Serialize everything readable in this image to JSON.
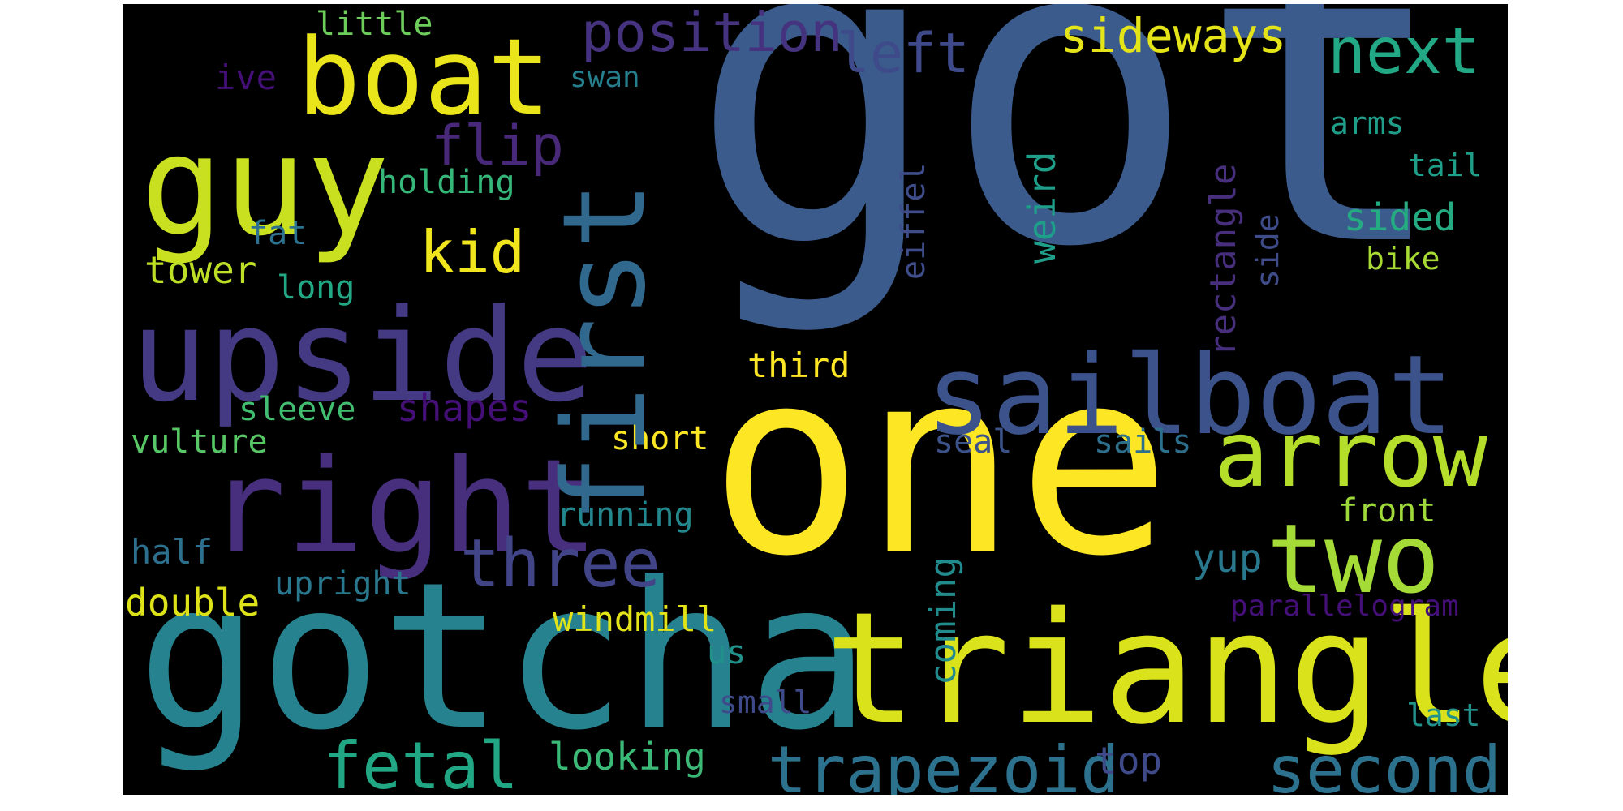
{
  "words": [
    {
      "text": "got",
      "color": "#3b5b8c"
    },
    {
      "text": "one",
      "color": "#fde725"
    },
    {
      "text": "gotcha",
      "color": "#26828e"
    },
    {
      "text": "triangle",
      "color": "#d9e21a"
    },
    {
      "text": "upside",
      "color": "#443983"
    },
    {
      "text": "right",
      "color": "#472f7d"
    },
    {
      "text": "guy",
      "color": "#c8e020"
    },
    {
      "text": "boat",
      "color": "#eae51a"
    },
    {
      "text": "sailboat",
      "color": "#3b528b"
    },
    {
      "text": "first",
      "color": "#31688e"
    },
    {
      "text": "arrow",
      "color": "#b5de2b"
    },
    {
      "text": "two",
      "color": "#a5db36"
    },
    {
      "text": "trapezoid",
      "color": "#2c728e"
    },
    {
      "text": "second",
      "color": "#2c728e"
    },
    {
      "text": "fetal",
      "color": "#22a785"
    },
    {
      "text": "three",
      "color": "#414487"
    },
    {
      "text": "next",
      "color": "#22a884"
    },
    {
      "text": "position",
      "color": "#46337f"
    },
    {
      "text": "left",
      "color": "#3e4a89"
    },
    {
      "text": "sideways",
      "color": "#e5e419"
    },
    {
      "text": "flip",
      "color": "#482878"
    },
    {
      "text": "kid",
      "color": "#f1e51d"
    },
    {
      "text": "looking",
      "color": "#3aba76"
    },
    {
      "text": "windmill",
      "color": "#e2e418"
    },
    {
      "text": "coming",
      "color": "#228c8d"
    },
    {
      "text": "eiffel",
      "color": "#3e4c8a"
    },
    {
      "text": "weird",
      "color": "#1f9e89"
    },
    {
      "text": "rectangle",
      "color": "#472f7d"
    },
    {
      "text": "side",
      "color": "#3e4c8a"
    },
    {
      "text": "sided",
      "color": "#25ab82"
    },
    {
      "text": "shapes",
      "color": "#440f76"
    },
    {
      "text": "little",
      "color": "#6ccd5a"
    },
    {
      "text": "swan",
      "color": "#277f8e"
    },
    {
      "text": "ive",
      "color": "#440f76"
    },
    {
      "text": "holding",
      "color": "#35b779"
    },
    {
      "text": "fat",
      "color": "#2c728e"
    },
    {
      "text": "tower",
      "color": "#bddf26"
    },
    {
      "text": "long",
      "color": "#22a884"
    },
    {
      "text": "third",
      "color": "#fde725"
    },
    {
      "text": "sleeve",
      "color": "#42be71"
    },
    {
      "text": "vulture",
      "color": "#58c765"
    },
    {
      "text": "short",
      "color": "#fde725"
    },
    {
      "text": "seal",
      "color": "#3b528b"
    },
    {
      "text": "sails",
      "color": "#2d708e"
    },
    {
      "text": "running",
      "color": "#23888e"
    },
    {
      "text": "half",
      "color": "#2d708e"
    },
    {
      "text": "double",
      "color": "#dde318"
    },
    {
      "text": "upright",
      "color": "#2a788e"
    },
    {
      "text": "yup",
      "color": "#2a788e"
    },
    {
      "text": "us",
      "color": "#21918c"
    },
    {
      "text": "small",
      "color": "#3e4a89"
    },
    {
      "text": "top",
      "color": "#3e4a89"
    },
    {
      "text": "front",
      "color": "#9fda3a"
    },
    {
      "text": "parallelogram",
      "color": "#440f76"
    },
    {
      "text": "arms",
      "color": "#1f9e89"
    },
    {
      "text": "tail",
      "color": "#1f9e89"
    },
    {
      "text": "bike",
      "color": "#a8db34"
    },
    {
      "text": "last",
      "color": "#21918c"
    }
  ]
}
